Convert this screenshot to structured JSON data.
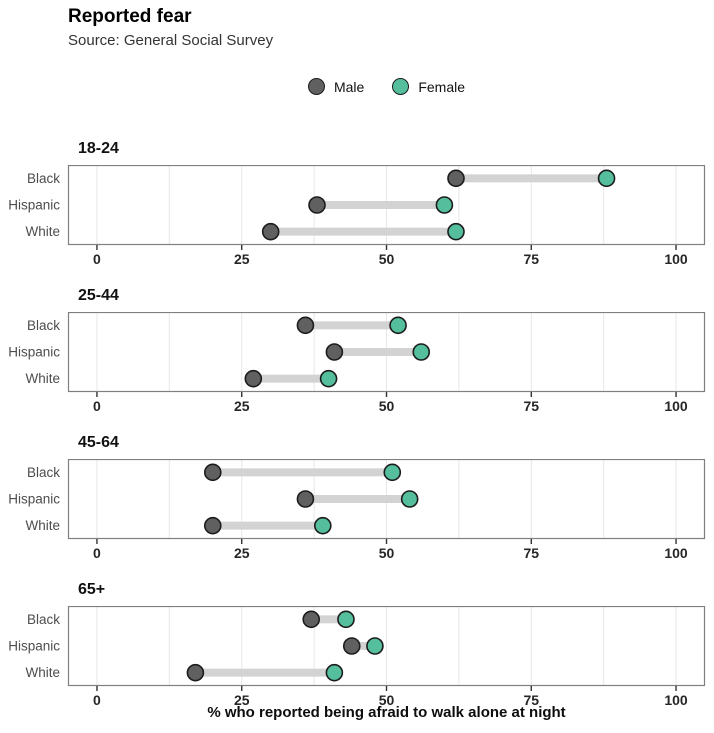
{
  "header": {
    "title": "Reported fear",
    "subtitle": "Source: General Social Survey"
  },
  "legend": {
    "items": [
      {
        "label": "Male",
        "color": "#606060"
      },
      {
        "label": "Female",
        "color": "#54be9d"
      }
    ]
  },
  "chart_data": {
    "type": "dumbbell",
    "title": "Reported fear",
    "subtitle": "Source: General Social Survey",
    "xlabel": "% who reported being afraid to walk alone at night",
    "xlim": [
      0,
      100
    ],
    "x_ticks": [
      0,
      25,
      50,
      75,
      100
    ],
    "x_minor_ticks": [
      12.5,
      37.5,
      62.5,
      87.5
    ],
    "grid": true,
    "legend_position": "top-center",
    "series_labels": [
      "Male",
      "Female"
    ],
    "categories": [
      "Black",
      "Hispanic",
      "White"
    ],
    "facets": [
      {
        "age_group": "18-24",
        "rows": [
          {
            "category": "Black",
            "male": 62,
            "female": 88
          },
          {
            "category": "Hispanic",
            "male": 38,
            "female": 60
          },
          {
            "category": "White",
            "male": 30,
            "female": 62
          }
        ]
      },
      {
        "age_group": "25-44",
        "rows": [
          {
            "category": "Black",
            "male": 36,
            "female": 52
          },
          {
            "category": "Hispanic",
            "male": 41,
            "female": 56
          },
          {
            "category": "White",
            "male": 27,
            "female": 40
          }
        ]
      },
      {
        "age_group": "45-64",
        "rows": [
          {
            "category": "Black",
            "male": 20,
            "female": 51
          },
          {
            "category": "Hispanic",
            "male": 36,
            "female": 54
          },
          {
            "category": "White",
            "male": 20,
            "female": 39
          }
        ]
      },
      {
        "age_group": "65+",
        "rows": [
          {
            "category": "Black",
            "male": 37,
            "female": 43
          },
          {
            "category": "Hispanic",
            "male": 44,
            "female": 48
          },
          {
            "category": "White",
            "male": 17,
            "female": 41
          }
        ]
      }
    ],
    "colors": {
      "male_fill": "#606060",
      "female_fill": "#54be9d",
      "dot_stroke": "#1c1c1c",
      "connector": "#d3d3d3",
      "panel_border": "#7f7f7f",
      "gridline": "#e7e7e7",
      "tick_label": "#262626",
      "y_label": "#4d4d4d"
    }
  }
}
